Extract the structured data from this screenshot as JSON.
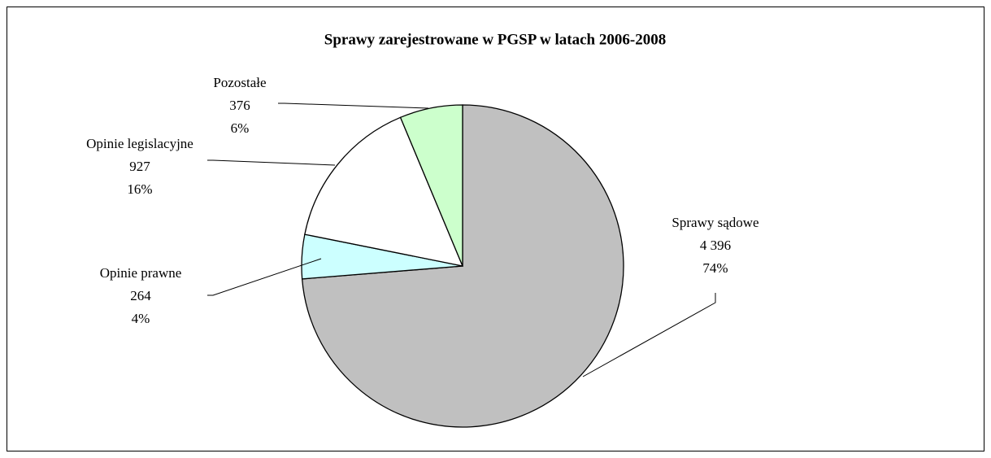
{
  "chart_data": {
    "type": "pie",
    "title": "Sprawy zarejestrowane w PGSP w latach 2006-2008",
    "categories": [
      "Sprawy sądowe",
      "Opinie prawne",
      "Opinie legislacyjne",
      "Pozostałe"
    ],
    "values": [
      4396,
      264,
      927,
      376
    ],
    "value_labels": [
      "4 396",
      "264",
      "927",
      "376"
    ],
    "percent_labels": [
      "74%",
      "4%",
      "16%",
      "6%"
    ],
    "colors": [
      "#c0c0c0",
      "#ccffff",
      "#ffffff",
      "#ccffcc"
    ]
  }
}
